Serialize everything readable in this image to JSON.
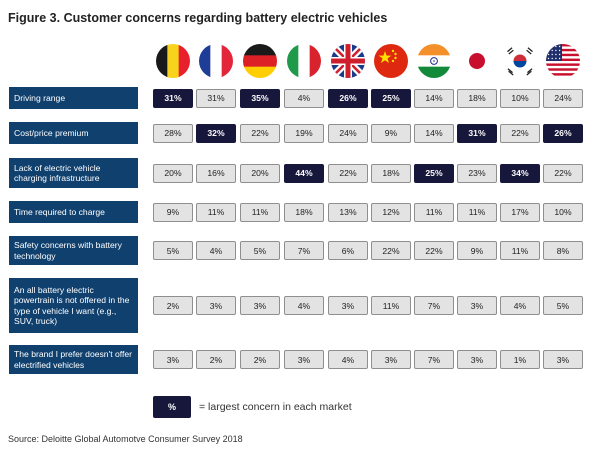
{
  "title": "Figure 3. Customer concerns regarding battery electric vehicles",
  "source": "Source: Deloitte Global Automotve Consumer Survey 2018",
  "legend": {
    "swatch_label": "%",
    "text": "= largest concern in each market"
  },
  "colors": {
    "row_label_bg": "#10406e",
    "highlight_bg": "#17173c",
    "cell_bg": "#e3e3e3",
    "cell_border": "#8f8f8f"
  },
  "markets": [
    {
      "flag": "belgium-flag-icon"
    },
    {
      "flag": "france-flag-icon"
    },
    {
      "flag": "germany-flag-icon"
    },
    {
      "flag": "italy-flag-icon"
    },
    {
      "flag": "uk-flag-icon"
    },
    {
      "flag": "china-flag-icon"
    },
    {
      "flag": "india-flag-icon"
    },
    {
      "flag": "japan-flag-icon"
    },
    {
      "flag": "south-korea-flag-icon"
    },
    {
      "flag": "usa-flag-icon"
    }
  ],
  "chart_data": {
    "type": "table",
    "title": "Figure 3. Customer concerns regarding battery electric vehicles",
    "rows": [
      {
        "label": "Driving range",
        "values": [
          "31%",
          "31%",
          "35%",
          "4%",
          "26%",
          "25%",
          "14%",
          "18%",
          "10%",
          "24%"
        ],
        "highlight": [
          true,
          false,
          true,
          false,
          true,
          true,
          false,
          false,
          false,
          false
        ]
      },
      {
        "label": "Cost/price premium",
        "values": [
          "28%",
          "32%",
          "22%",
          "19%",
          "24%",
          "9%",
          "14%",
          "31%",
          "22%",
          "26%"
        ],
        "highlight": [
          false,
          true,
          false,
          false,
          false,
          false,
          false,
          true,
          false,
          true
        ]
      },
      {
        "label": "Lack of electric vehicle charging infrastructure",
        "values": [
          "20%",
          "16%",
          "20%",
          "44%",
          "22%",
          "18%",
          "25%",
          "23%",
          "34%",
          "22%"
        ],
        "highlight": [
          false,
          false,
          false,
          true,
          false,
          false,
          true,
          false,
          true,
          false
        ]
      },
      {
        "label": "Time required to charge",
        "values": [
          "9%",
          "11%",
          "11%",
          "18%",
          "13%",
          "12%",
          "11%",
          "11%",
          "17%",
          "10%"
        ],
        "highlight": [
          false,
          false,
          false,
          false,
          false,
          false,
          false,
          false,
          false,
          false
        ]
      },
      {
        "label": "Safety concerns with battery technology",
        "values": [
          "5%",
          "4%",
          "5%",
          "7%",
          "6%",
          "22%",
          "22%",
          "9%",
          "11%",
          "8%"
        ],
        "highlight": [
          false,
          false,
          false,
          false,
          false,
          false,
          false,
          false,
          false,
          false
        ]
      },
      {
        "label": "An all battery electric powertrain is not offered in the type of vehicle I want (e.g., SUV, truck)",
        "values": [
          "2%",
          "3%",
          "3%",
          "4%",
          "3%",
          "11%",
          "7%",
          "3%",
          "4%",
          "5%"
        ],
        "highlight": [
          false,
          false,
          false,
          false,
          false,
          false,
          false,
          false,
          false,
          false
        ]
      },
      {
        "label": "The brand I prefer doesn't offer electrified vehicles",
        "values": [
          "3%",
          "2%",
          "2%",
          "3%",
          "4%",
          "3%",
          "7%",
          "3%",
          "1%",
          "3%"
        ],
        "highlight": [
          false,
          false,
          false,
          false,
          false,
          false,
          false,
          false,
          false,
          false
        ]
      }
    ]
  }
}
